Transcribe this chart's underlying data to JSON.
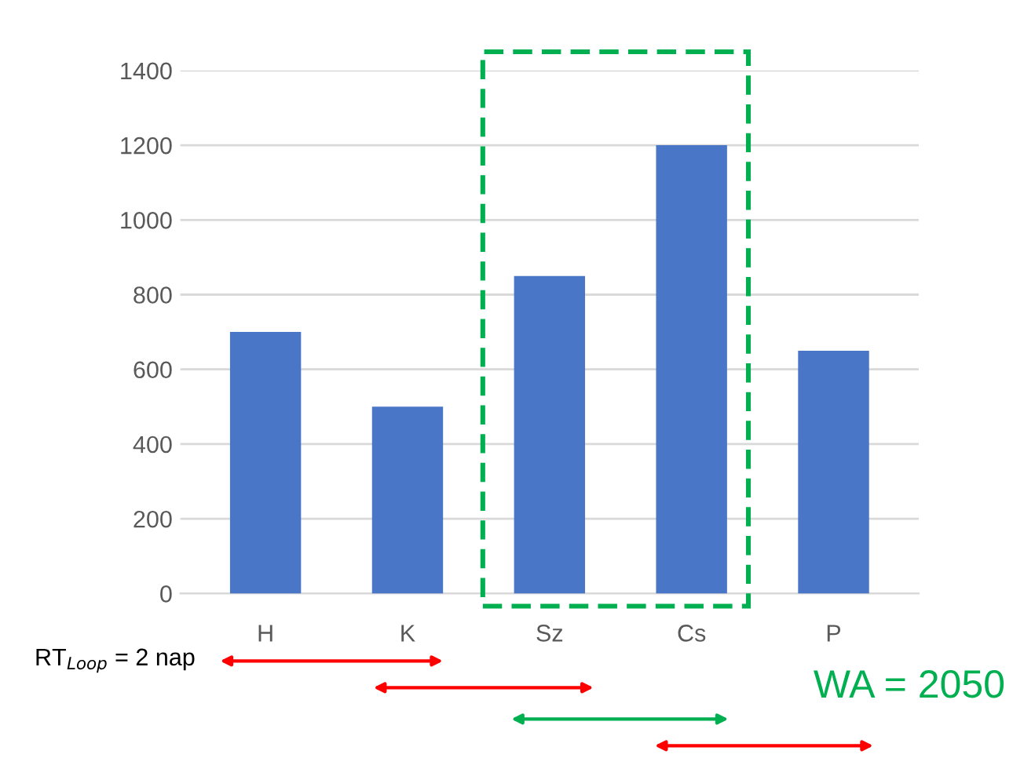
{
  "chart_data": {
    "type": "bar",
    "categories": [
      "H",
      "K",
      "Sz",
      "Cs",
      "P"
    ],
    "values": [
      700,
      500,
      850,
      1200,
      650
    ],
    "color": "#4a76c8",
    "ylim": [
      0,
      1400
    ],
    "yticks": [
      0,
      200,
      400,
      600,
      800,
      1000,
      1200,
      1400
    ],
    "grid": "y",
    "annotations": [
      "RT$_{Loop}$ = 2 nap",
      "WA = 2050"
    ]
  }
}
